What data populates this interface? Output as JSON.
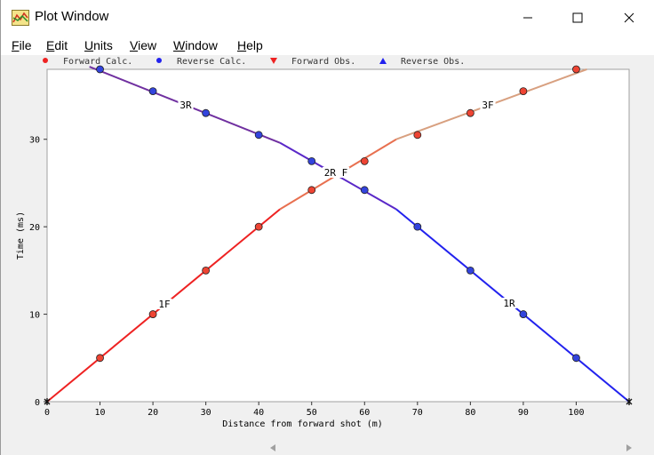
{
  "window": {
    "title": "Plot Window",
    "controls": {
      "minimize": "minimize",
      "maximize": "maximize",
      "close": "close"
    }
  },
  "menu": {
    "items": [
      {
        "label": "File",
        "key": "F",
        "rest": "ile"
      },
      {
        "label": "Edit",
        "key": "E",
        "rest": "dit"
      },
      {
        "label": "Units",
        "key": "U",
        "rest": "nits"
      },
      {
        "label": "View",
        "key": "V",
        "rest": "iew"
      },
      {
        "label": "Window",
        "key": "W",
        "rest": "indow"
      },
      {
        "label": "Help",
        "key": "H",
        "rest": "elp"
      }
    ]
  },
  "colors": {
    "forward": "#ee2222",
    "reverse": "#2222ee",
    "segment_3R": "#7030a0",
    "segment_2F": "#e87050",
    "segment_3F": "#d8a080",
    "segment_2R": "#5a28c8",
    "marker_forward": "#ee4433",
    "marker_reverse": "#3344dd"
  },
  "chart_data": {
    "type": "scatter",
    "xlabel": "Distance from forward shot (m)",
    "ylabel": "Time (ms)",
    "xlim": [
      0,
      110
    ],
    "ylim": [
      0,
      38
    ],
    "xticks": [
      0,
      10,
      20,
      30,
      40,
      50,
      60,
      70,
      80,
      90,
      100
    ],
    "yticks": [
      0,
      10,
      20,
      30
    ],
    "legend": {
      "placement": "top",
      "entries": [
        {
          "label": "Forward Calc.",
          "marker": "circle",
          "color": "#ee2222"
        },
        {
          "label": "Reverse Calc.",
          "marker": "circle",
          "color": "#2222ee"
        },
        {
          "label": "Forward Obs.",
          "marker": "triangle-down",
          "color": "#ee2222"
        },
        {
          "label": "Reverse Obs.",
          "marker": "triangle-up",
          "color": "#2222ee"
        }
      ]
    },
    "series": [
      {
        "name": "Forward Calc.",
        "points": [
          [
            0,
            0
          ],
          [
            10,
            5
          ],
          [
            20,
            10
          ],
          [
            30,
            15
          ],
          [
            40,
            20
          ],
          [
            50,
            24.2
          ],
          [
            60,
            27.5
          ],
          [
            70,
            30.5
          ],
          [
            80,
            33
          ],
          [
            90,
            35.5
          ],
          [
            100,
            38
          ]
        ]
      },
      {
        "name": "Reverse Calc.",
        "points": [
          [
            10,
            38
          ],
          [
            20,
            35.5
          ],
          [
            30,
            33
          ],
          [
            40,
            30.5
          ],
          [
            50,
            27.5
          ],
          [
            60,
            24.2
          ],
          [
            70,
            20
          ],
          [
            80,
            15
          ],
          [
            90,
            10
          ],
          [
            100,
            5
          ],
          [
            110,
            0
          ]
        ]
      }
    ],
    "segments": [
      {
        "label": "1F",
        "color": "#ee2222",
        "points": [
          [
            0,
            0
          ],
          [
            44,
            22
          ]
        ],
        "label_at": [
          22,
          11
        ]
      },
      {
        "label": "2F",
        "color": "#e87050",
        "points": [
          [
            44,
            22
          ],
          [
            66,
            30
          ]
        ],
        "label_at": [
          55,
          26
        ]
      },
      {
        "label": "3F",
        "color": "#d8a080",
        "points": [
          [
            66,
            30
          ],
          [
            102,
            38
          ]
        ],
        "label_at": [
          84,
          34
        ]
      },
      {
        "label": "3R",
        "color": "#7030a0",
        "points": [
          [
            8,
            38.3
          ],
          [
            44,
            29.6
          ]
        ],
        "label_at": [
          26,
          34
        ]
      },
      {
        "label": "2R",
        "color": "#5a28c8",
        "points": [
          [
            44,
            29.6
          ],
          [
            66,
            22
          ]
        ],
        "label_at": [
          55,
          26
        ]
      },
      {
        "label": "1R",
        "color": "#2222ee",
        "points": [
          [
            66,
            22
          ],
          [
            110,
            0
          ]
        ],
        "label_at": [
          88,
          11
        ]
      }
    ],
    "endpoints": [
      [
        0,
        0
      ],
      [
        110,
        0
      ]
    ],
    "crossover_label": "2R F",
    "segment_labels": [
      "1F",
      "3F",
      "3R",
      "1R"
    ]
  }
}
